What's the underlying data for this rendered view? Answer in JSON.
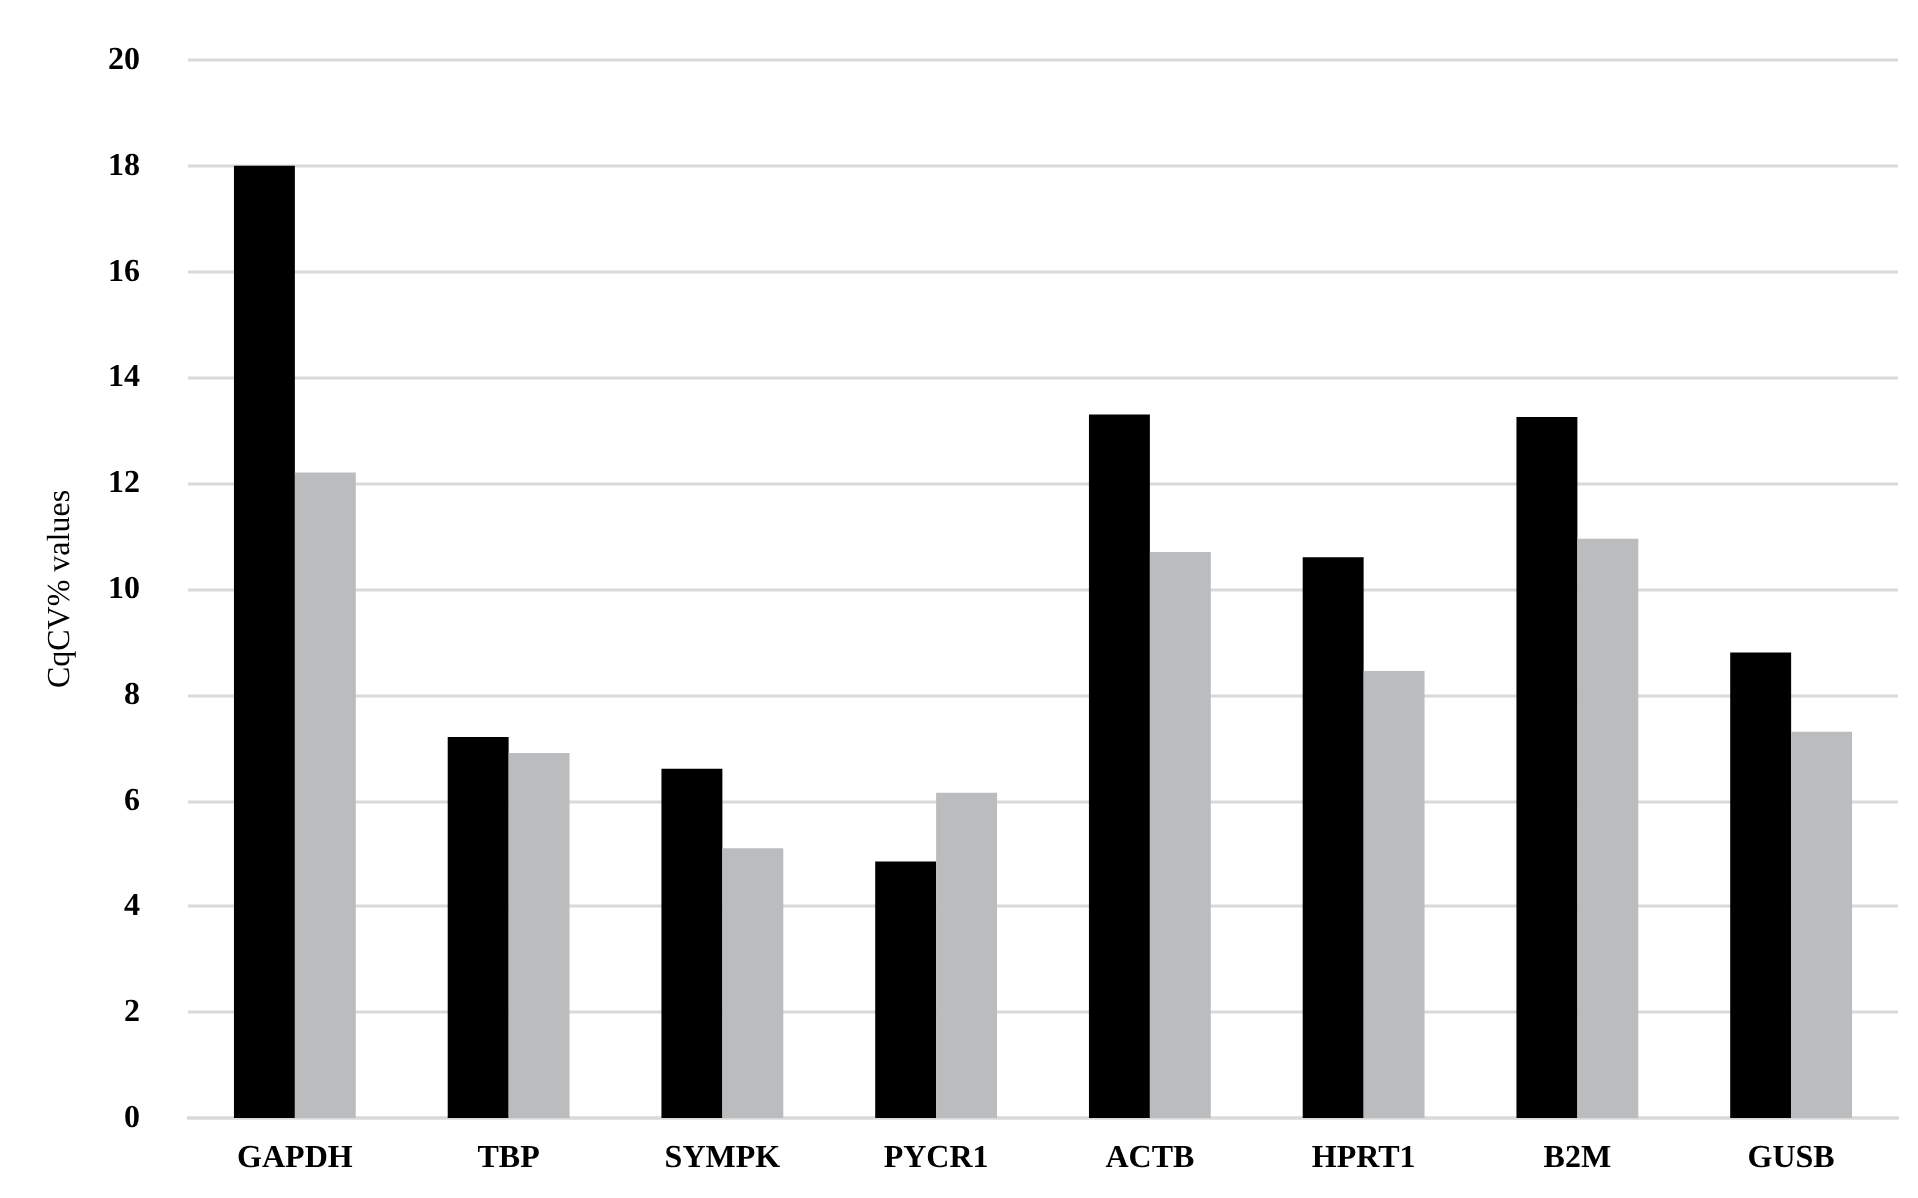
{
  "chart_data": {
    "type": "bar",
    "ylabel": "CqCV% values",
    "categories": [
      "GAPDH",
      "TBP",
      "SYMPK",
      "PYCR1",
      "ACTB",
      "HPRT1",
      "B2M",
      "GUSB"
    ],
    "series": [
      {
        "color": "#000000",
        "values": [
          18.0,
          7.2,
          6.6,
          4.85,
          13.3,
          10.6,
          13.25,
          8.8
        ]
      },
      {
        "color": "#bbbcbe",
        "values": [
          12.2,
          6.9,
          5.1,
          6.15,
          10.7,
          8.45,
          10.95,
          7.3
        ]
      }
    ],
    "ylim": [
      0,
      20
    ],
    "yticks": [
      0,
      2,
      4,
      6,
      8,
      10,
      12,
      14,
      16,
      18,
      20
    ],
    "grid": "y"
  }
}
